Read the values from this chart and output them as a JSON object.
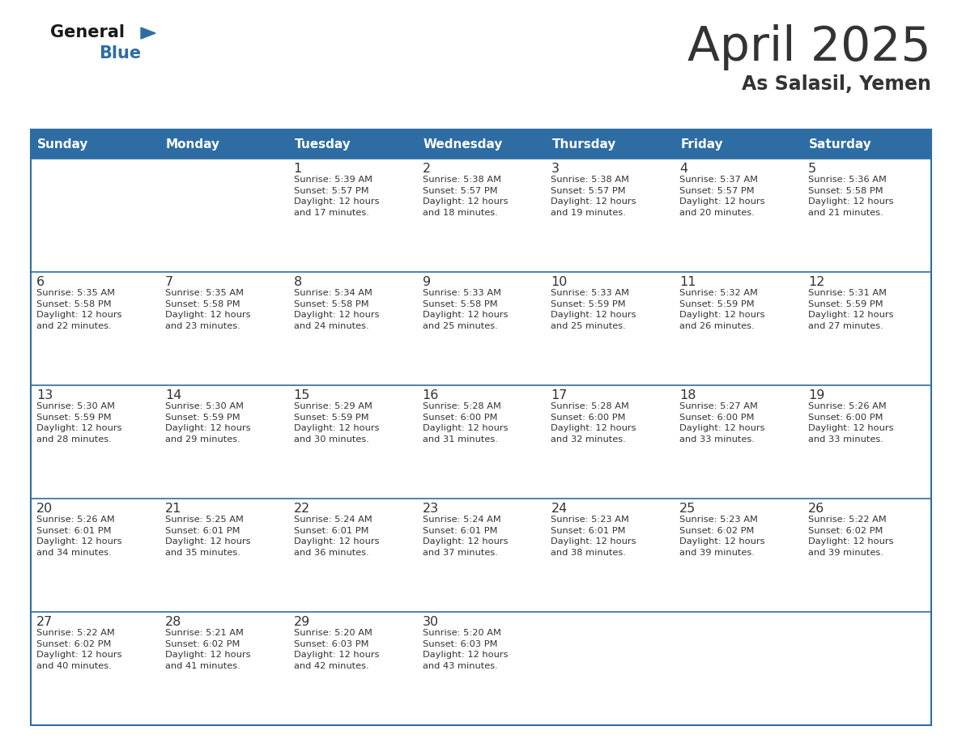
{
  "title": "April 2025",
  "subtitle": "As Salasil, Yemen",
  "header_bg": "#2e6da4",
  "header_text_color": "#ffffff",
  "cell_bg_white": "#ffffff",
  "cell_bg_light": "#f0f4f8",
  "border_color": "#2e6da4",
  "text_color": "#333333",
  "logo_general_color": "#1a1a1a",
  "logo_blue_color": "#2e6da4",
  "days_of_week": [
    "Sunday",
    "Monday",
    "Tuesday",
    "Wednesday",
    "Thursday",
    "Friday",
    "Saturday"
  ],
  "weeks": [
    [
      {
        "day": "",
        "info": ""
      },
      {
        "day": "",
        "info": ""
      },
      {
        "day": "1",
        "info": "Sunrise: 5:39 AM\nSunset: 5:57 PM\nDaylight: 12 hours\nand 17 minutes."
      },
      {
        "day": "2",
        "info": "Sunrise: 5:38 AM\nSunset: 5:57 PM\nDaylight: 12 hours\nand 18 minutes."
      },
      {
        "day": "3",
        "info": "Sunrise: 5:38 AM\nSunset: 5:57 PM\nDaylight: 12 hours\nand 19 minutes."
      },
      {
        "day": "4",
        "info": "Sunrise: 5:37 AM\nSunset: 5:57 PM\nDaylight: 12 hours\nand 20 minutes."
      },
      {
        "day": "5",
        "info": "Sunrise: 5:36 AM\nSunset: 5:58 PM\nDaylight: 12 hours\nand 21 minutes."
      }
    ],
    [
      {
        "day": "6",
        "info": "Sunrise: 5:35 AM\nSunset: 5:58 PM\nDaylight: 12 hours\nand 22 minutes."
      },
      {
        "day": "7",
        "info": "Sunrise: 5:35 AM\nSunset: 5:58 PM\nDaylight: 12 hours\nand 23 minutes."
      },
      {
        "day": "8",
        "info": "Sunrise: 5:34 AM\nSunset: 5:58 PM\nDaylight: 12 hours\nand 24 minutes."
      },
      {
        "day": "9",
        "info": "Sunrise: 5:33 AM\nSunset: 5:58 PM\nDaylight: 12 hours\nand 25 minutes."
      },
      {
        "day": "10",
        "info": "Sunrise: 5:33 AM\nSunset: 5:59 PM\nDaylight: 12 hours\nand 25 minutes."
      },
      {
        "day": "11",
        "info": "Sunrise: 5:32 AM\nSunset: 5:59 PM\nDaylight: 12 hours\nand 26 minutes."
      },
      {
        "day": "12",
        "info": "Sunrise: 5:31 AM\nSunset: 5:59 PM\nDaylight: 12 hours\nand 27 minutes."
      }
    ],
    [
      {
        "day": "13",
        "info": "Sunrise: 5:30 AM\nSunset: 5:59 PM\nDaylight: 12 hours\nand 28 minutes."
      },
      {
        "day": "14",
        "info": "Sunrise: 5:30 AM\nSunset: 5:59 PM\nDaylight: 12 hours\nand 29 minutes."
      },
      {
        "day": "15",
        "info": "Sunrise: 5:29 AM\nSunset: 5:59 PM\nDaylight: 12 hours\nand 30 minutes."
      },
      {
        "day": "16",
        "info": "Sunrise: 5:28 AM\nSunset: 6:00 PM\nDaylight: 12 hours\nand 31 minutes."
      },
      {
        "day": "17",
        "info": "Sunrise: 5:28 AM\nSunset: 6:00 PM\nDaylight: 12 hours\nand 32 minutes."
      },
      {
        "day": "18",
        "info": "Sunrise: 5:27 AM\nSunset: 6:00 PM\nDaylight: 12 hours\nand 33 minutes."
      },
      {
        "day": "19",
        "info": "Sunrise: 5:26 AM\nSunset: 6:00 PM\nDaylight: 12 hours\nand 33 minutes."
      }
    ],
    [
      {
        "day": "20",
        "info": "Sunrise: 5:26 AM\nSunset: 6:01 PM\nDaylight: 12 hours\nand 34 minutes."
      },
      {
        "day": "21",
        "info": "Sunrise: 5:25 AM\nSunset: 6:01 PM\nDaylight: 12 hours\nand 35 minutes."
      },
      {
        "day": "22",
        "info": "Sunrise: 5:24 AM\nSunset: 6:01 PM\nDaylight: 12 hours\nand 36 minutes."
      },
      {
        "day": "23",
        "info": "Sunrise: 5:24 AM\nSunset: 6:01 PM\nDaylight: 12 hours\nand 37 minutes."
      },
      {
        "day": "24",
        "info": "Sunrise: 5:23 AM\nSunset: 6:01 PM\nDaylight: 12 hours\nand 38 minutes."
      },
      {
        "day": "25",
        "info": "Sunrise: 5:23 AM\nSunset: 6:02 PM\nDaylight: 12 hours\nand 39 minutes."
      },
      {
        "day": "26",
        "info": "Sunrise: 5:22 AM\nSunset: 6:02 PM\nDaylight: 12 hours\nand 39 minutes."
      }
    ],
    [
      {
        "day": "27",
        "info": "Sunrise: 5:22 AM\nSunset: 6:02 PM\nDaylight: 12 hours\nand 40 minutes."
      },
      {
        "day": "28",
        "info": "Sunrise: 5:21 AM\nSunset: 6:02 PM\nDaylight: 12 hours\nand 41 minutes."
      },
      {
        "day": "29",
        "info": "Sunrise: 5:20 AM\nSunset: 6:03 PM\nDaylight: 12 hours\nand 42 minutes."
      },
      {
        "day": "30",
        "info": "Sunrise: 5:20 AM\nSunset: 6:03 PM\nDaylight: 12 hours\nand 43 minutes."
      },
      {
        "day": "",
        "info": ""
      },
      {
        "day": "",
        "info": ""
      },
      {
        "day": "",
        "info": ""
      }
    ]
  ]
}
